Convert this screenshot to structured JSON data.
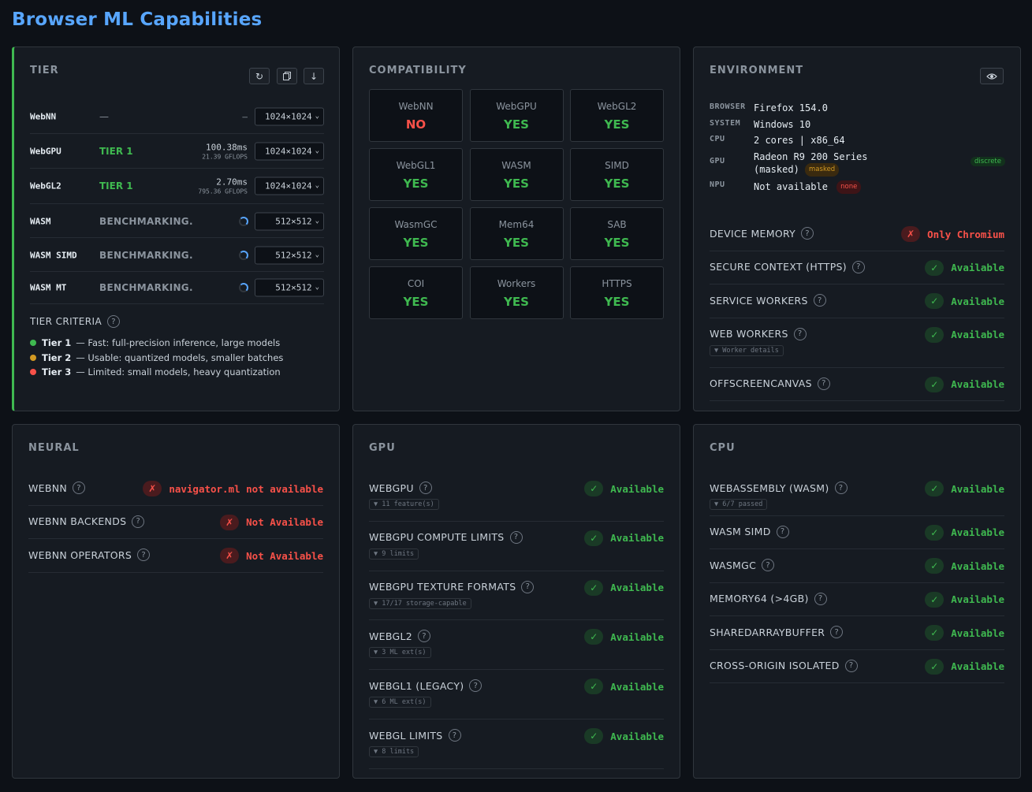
{
  "page": {
    "title": "Browser ML Capabilities"
  },
  "tier_panel": {
    "title": "TIER",
    "rows": [
      {
        "name": "WebNN",
        "status": "—",
        "ms": "–",
        "gflops": "",
        "size": "1024×1024"
      },
      {
        "name": "WebGPU",
        "status": "TIER 1",
        "ms": "100.38ms",
        "gflops": "21.39 GFLOPS",
        "size": "1024×1024"
      },
      {
        "name": "WebGL2",
        "status": "TIER 1",
        "ms": "2.70ms",
        "gflops": "795.36 GFLOPS",
        "size": "1024×1024"
      },
      {
        "name": "WASM",
        "status": "BENCHMARKING.",
        "ms": "",
        "gflops": "",
        "size": "512×512"
      },
      {
        "name": "WASM SIMD",
        "status": "BENCHMARKING.",
        "ms": "",
        "gflops": "",
        "size": "512×512"
      },
      {
        "name": "WASM MT",
        "status": "BENCHMARKING.",
        "ms": "",
        "gflops": "",
        "size": "512×512"
      }
    ],
    "criteria_title": "TIER CRITERIA",
    "criteria": [
      {
        "tier": "Tier 1",
        "desc": "— Fast: full-precision inference, large models",
        "color": "#3fb950"
      },
      {
        "tier": "Tier 2",
        "desc": "— Usable: quantized models, smaller batches",
        "color": "#d29922"
      },
      {
        "tier": "Tier 3",
        "desc": "— Limited: small models, heavy quantization",
        "color": "#f85149"
      }
    ]
  },
  "compat_panel": {
    "title": "COMPATIBILITY",
    "cells": [
      {
        "name": "WebNN",
        "value": "NO"
      },
      {
        "name": "WebGPU",
        "value": "YES"
      },
      {
        "name": "WebGL2",
        "value": "YES"
      },
      {
        "name": "WebGL1",
        "value": "YES"
      },
      {
        "name": "WASM",
        "value": "YES"
      },
      {
        "name": "SIMD",
        "value": "YES"
      },
      {
        "name": "WasmGC",
        "value": "YES"
      },
      {
        "name": "Mem64",
        "value": "YES"
      },
      {
        "name": "SAB",
        "value": "YES"
      },
      {
        "name": "COI",
        "value": "YES"
      },
      {
        "name": "Workers",
        "value": "YES"
      },
      {
        "name": "HTTPS",
        "value": "YES"
      }
    ]
  },
  "env_panel": {
    "title": "ENVIRONMENT",
    "browser_key": "BROWSER",
    "browser": "Firefox 154.0",
    "system_key": "SYSTEM",
    "system": "Windows 10",
    "cpu_key": "CPU",
    "cpu": "2 cores | x86_64",
    "gpu_key": "GPU",
    "gpu_line1": "Radeon R9 200 Series",
    "gpu_line2": "(masked)",
    "gpu_tag": "masked",
    "gpu_type": "discrete",
    "npu_key": "NPU",
    "npu": "Not available",
    "npu_tag": "none",
    "features": [
      {
        "label": "DEVICE MEMORY",
        "status": "Only Chromium",
        "ok": false
      },
      {
        "label": "SECURE CONTEXT (HTTPS)",
        "status": "Available",
        "ok": true
      },
      {
        "label": "SERVICE WORKERS",
        "status": "Available",
        "ok": true
      },
      {
        "label": "WEB WORKERS",
        "status": "Available",
        "ok": true,
        "detail": "▼ Worker details"
      },
      {
        "label": "OFFSCREENCANVAS",
        "status": "Available",
        "ok": true
      }
    ]
  },
  "neural_panel": {
    "title": "NEURAL",
    "features": [
      {
        "label": "WEBNN",
        "status": "navigator.ml not available",
        "ok": false
      },
      {
        "label": "WEBNN BACKENDS",
        "status": "Not Available",
        "ok": false
      },
      {
        "label": "WEBNN OPERATORS",
        "status": "Not Available",
        "ok": false
      }
    ]
  },
  "gpu_panel": {
    "title": "GPU",
    "features": [
      {
        "label": "WEBGPU",
        "status": "Available",
        "ok": true,
        "detail": "▼ 11 feature(s)"
      },
      {
        "label": "WEBGPU COMPUTE LIMITS",
        "status": "Available",
        "ok": true,
        "detail": "▼ 9 limits"
      },
      {
        "label": "WEBGPU TEXTURE FORMATS",
        "status": "Available",
        "ok": true,
        "detail": "▼ 17/17 storage-capable"
      },
      {
        "label": "WEBGL2",
        "status": "Available",
        "ok": true,
        "detail": "▼ 3 ML ext(s)"
      },
      {
        "label": "WEBGL1 (LEGACY)",
        "status": "Available",
        "ok": true,
        "detail": "▼ 6 ML ext(s)"
      },
      {
        "label": "WEBGL LIMITS",
        "status": "Available",
        "ok": true,
        "detail": "▼ 8 limits"
      }
    ]
  },
  "cpu_panel": {
    "title": "CPU",
    "features": [
      {
        "label": "WEBASSEMBLY (WASM)",
        "status": "Available",
        "ok": true,
        "detail": "▼ 6/7 passed"
      },
      {
        "label": "WASM SIMD",
        "status": "Available",
        "ok": true
      },
      {
        "label": "WASMGC",
        "status": "Available",
        "ok": true
      },
      {
        "label": "MEMORY64 (>4GB)",
        "status": "Available",
        "ok": true
      },
      {
        "label": "SHAREDARRAYBUFFER",
        "status": "Available",
        "ok": true
      },
      {
        "label": "CROSS-ORIGIN ISOLATED",
        "status": "Available",
        "ok": true
      }
    ]
  },
  "icons": {
    "refresh": "refresh-icon",
    "copy": "copy-icon",
    "download": "download-icon",
    "eye": "eye-icon",
    "help": "help-icon",
    "check": "check-icon",
    "cross": "cross-icon"
  },
  "glyphs": {
    "help": "?",
    "check": "✓",
    "cross": "✗",
    "chev": "⌄"
  }
}
